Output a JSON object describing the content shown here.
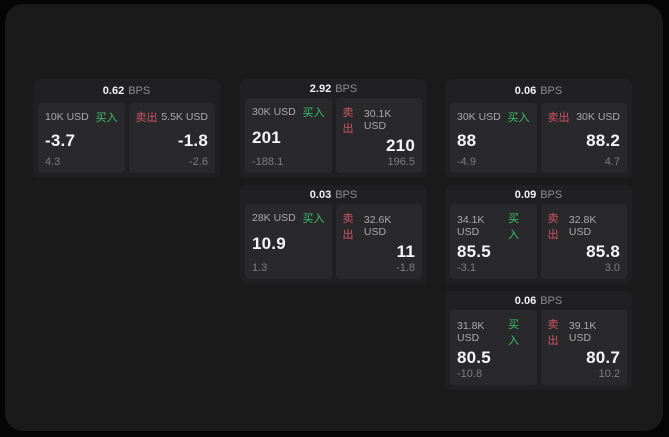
{
  "labels": {
    "buy": "买入",
    "sell": "卖出",
    "unit": "BPS"
  },
  "colors": {
    "green": "#3cc06e",
    "red": "#cf5368"
  },
  "cards": [
    {
      "bps": "0.62",
      "buy_amount": "10K USD",
      "buy_value": "-3.7",
      "buy_delta": "4.3",
      "sell_amount": "5.5K USD",
      "sell_value": "-1.8",
      "sell_delta": "-2.6"
    },
    {
      "bps": "2.92",
      "buy_amount": "30K USD",
      "buy_value": "201",
      "buy_delta": "-188.1",
      "sell_amount": "30.1K USD",
      "sell_value": "210",
      "sell_delta": "196.5"
    },
    {
      "bps": "0.06",
      "buy_amount": "30K USD",
      "buy_value": "88",
      "buy_delta": "-4.9",
      "sell_amount": "30K USD",
      "sell_value": "88.2",
      "sell_delta": "4.7"
    },
    {
      "bps": "0.03",
      "buy_amount": "28K USD",
      "buy_value": "10.9",
      "buy_delta": "1.3",
      "sell_amount": "32.6K USD",
      "sell_value": "11",
      "sell_delta": "-1.8"
    },
    {
      "bps": "0.09",
      "buy_amount": "34.1K USD",
      "buy_value": "85.5",
      "buy_delta": "-3.1",
      "sell_amount": "32.8K USD",
      "sell_value": "85.8",
      "sell_delta": "3.0"
    },
    {
      "bps": "0.06",
      "buy_amount": "31.8K USD",
      "buy_value": "80.5",
      "buy_delta": "-10.8",
      "sell_amount": "39.1K USD",
      "sell_value": "80.7",
      "sell_delta": "10.2"
    }
  ]
}
